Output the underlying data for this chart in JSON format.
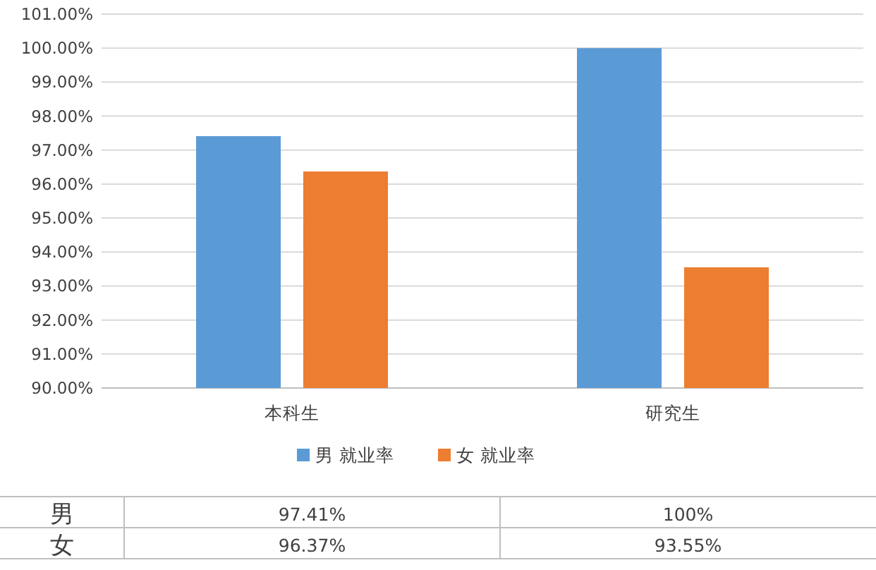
{
  "chart_data": {
    "type": "bar",
    "categories": [
      "本科生",
      "研究生"
    ],
    "series": [
      {
        "name": "男 就业率",
        "color": "#5b9bd5",
        "values": [
          97.41,
          100
        ],
        "value_labels": [
          "97.41%",
          "100%"
        ]
      },
      {
        "name": "女 就业率",
        "color": "#ed7d31",
        "values": [
          96.37,
          93.55
        ],
        "value_labels": [
          "96.37%",
          "93.55%"
        ]
      }
    ],
    "ylim": [
      90,
      101
    ],
    "yticks": [
      {
        "value": 90,
        "label": "90.00%"
      },
      {
        "value": 91,
        "label": "91.00%"
      },
      {
        "value": 92,
        "label": "92.00%"
      },
      {
        "value": 93,
        "label": "93.00%"
      },
      {
        "value": 94,
        "label": "94.00%"
      },
      {
        "value": 95,
        "label": "95.00%"
      },
      {
        "value": 96,
        "label": "96.00%"
      },
      {
        "value": 97,
        "label": "97.00%"
      },
      {
        "value": 98,
        "label": "98.00%"
      },
      {
        "value": 99,
        "label": "99.00%"
      },
      {
        "value": 100,
        "label": "100.00%"
      },
      {
        "value": 101,
        "label": "101.00%"
      }
    ],
    "grid": "y",
    "legend": "bottom",
    "annotations": [
      "男",
      "女"
    ]
  }
}
